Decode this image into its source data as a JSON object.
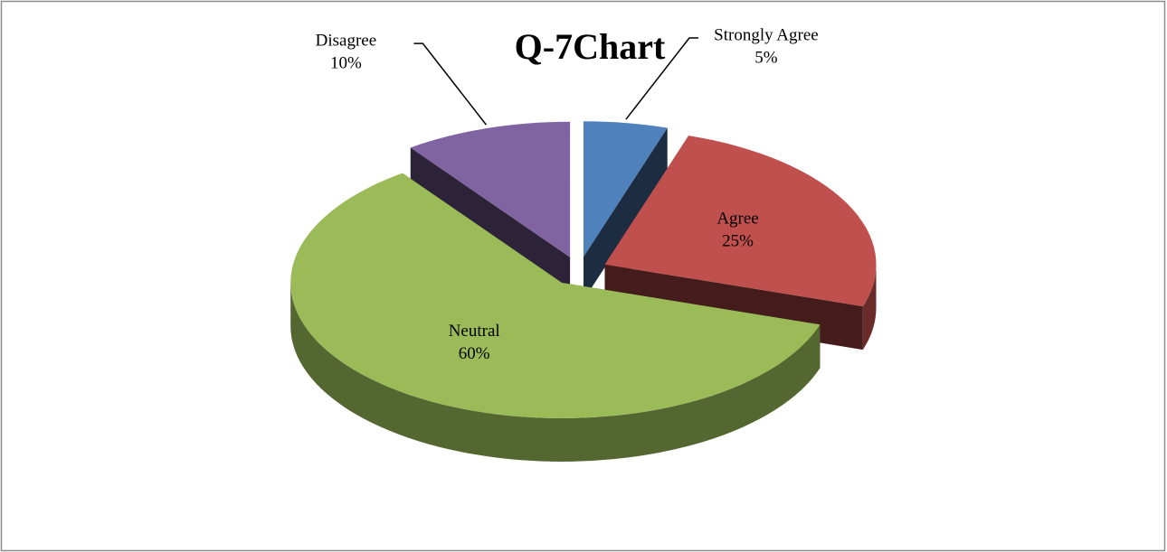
{
  "chart_data": {
    "type": "pie",
    "title": "Q-7Chart",
    "categories": [
      "Strongly Agree",
      "Agree",
      "Neutral",
      "Disagree"
    ],
    "values": [
      5,
      25,
      60,
      10
    ],
    "value_labels": [
      "5%",
      "25%",
      "60%",
      "10%"
    ],
    "colors": [
      "#4f81bd",
      "#c0504d",
      "#9bbb59",
      "#8064a2"
    ]
  }
}
